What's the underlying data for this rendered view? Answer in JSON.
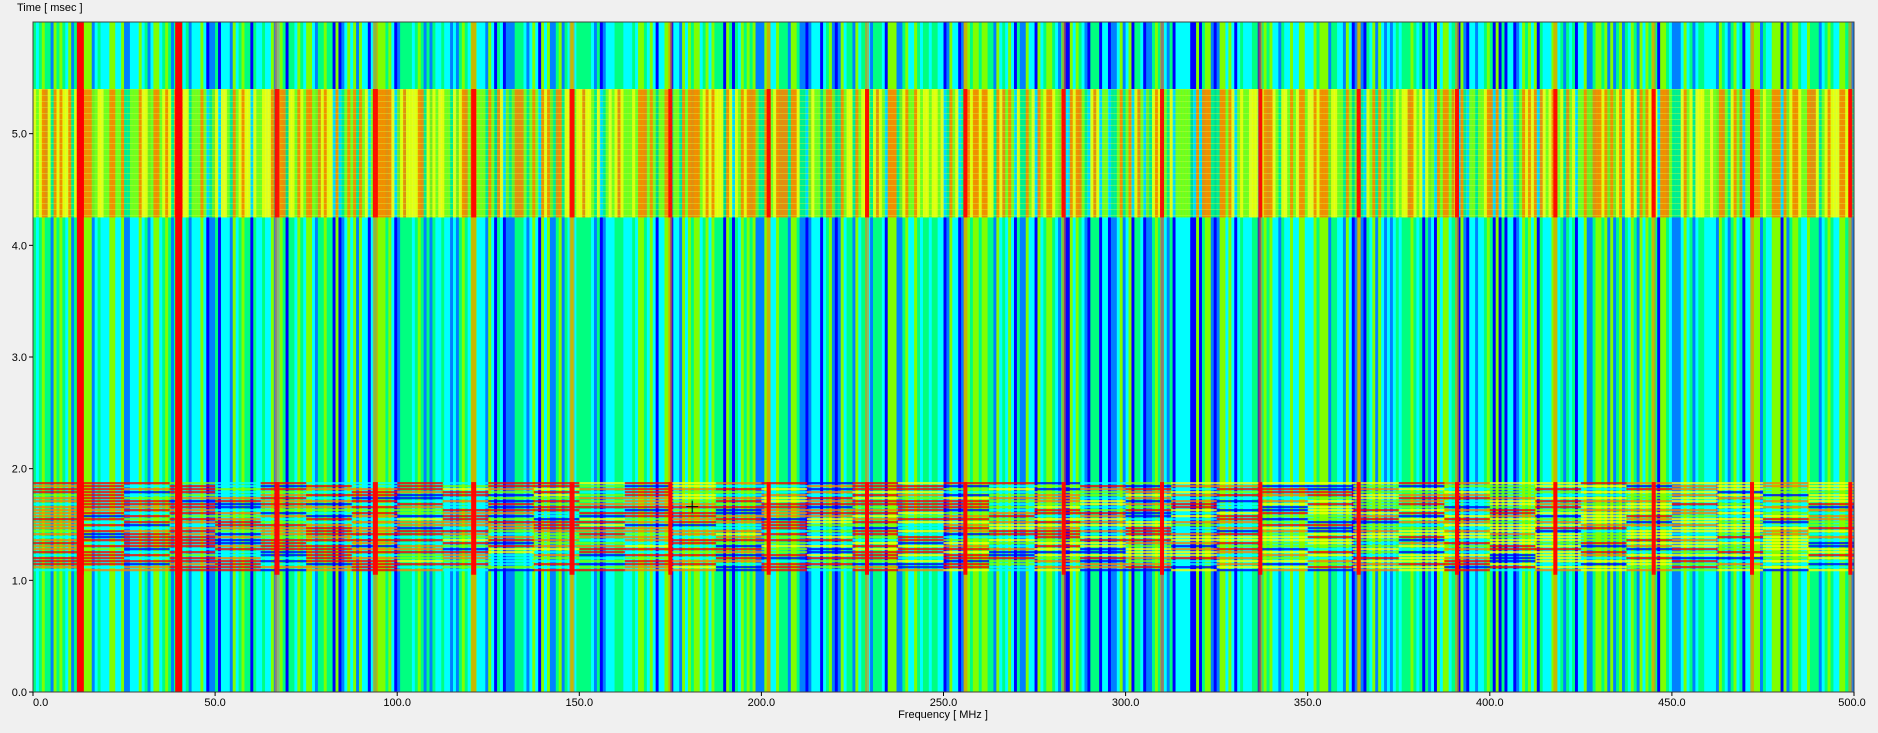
{
  "chart_data": {
    "type": "heatmap",
    "title": "",
    "ylabel": "Time [ msec ]",
    "xlabel": "Frequency [ MHz ]",
    "xlim": [
      0,
      500
    ],
    "ylim": [
      0,
      6
    ],
    "x_ticks": [
      "0.0",
      "50.0",
      "100.0",
      "150.0",
      "200.0",
      "250.0",
      "300.0",
      "350.0",
      "400.0",
      "450.0",
      "500.0"
    ],
    "y_ticks": [
      "0.0",
      "1.0",
      "2.0",
      "3.0",
      "4.0",
      "5.0"
    ],
    "x_tick_values": [
      0,
      50,
      100,
      150,
      200,
      250,
      300,
      350,
      400,
      450,
      500
    ],
    "y_tick_values": [
      0,
      1,
      2,
      3,
      4,
      5
    ],
    "colormap": [
      "#00007f",
      "#0000ff",
      "#0080ff",
      "#00ffff",
      "#00ff80",
      "#80ff00",
      "#ffff00",
      "#ff8000",
      "#ff0000"
    ],
    "strong_carriers_mhz": [
      13,
      40,
      67,
      94,
      121,
      148,
      175,
      202,
      229,
      256,
      283,
      310,
      337,
      364,
      391,
      418,
      445,
      472,
      499
    ],
    "bright_band_msec": [
      4.25,
      5.4
    ],
    "burst_band_msec": [
      1.05,
      1.88
    ],
    "grid": false,
    "legend": "none",
    "cursor": {
      "x_mhz": 181,
      "y_msec": 1.66
    }
  }
}
